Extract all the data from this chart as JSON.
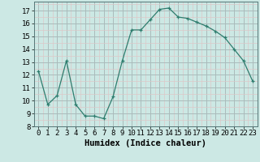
{
  "x": [
    0,
    1,
    2,
    3,
    4,
    5,
    6,
    7,
    8,
    9,
    10,
    11,
    12,
    13,
    14,
    15,
    16,
    17,
    18,
    19,
    20,
    21,
    22,
    23
  ],
  "y": [
    12.3,
    9.7,
    10.4,
    13.1,
    9.7,
    8.8,
    8.8,
    8.6,
    10.3,
    13.1,
    15.5,
    15.5,
    16.3,
    17.1,
    17.2,
    16.5,
    16.4,
    16.1,
    15.8,
    15.4,
    14.9,
    14.0,
    13.1,
    11.5
  ],
  "line_color": "#2e7d6e",
  "marker": "+",
  "bg_color": "#cce8e4",
  "major_grid_color": "#aabbbb",
  "minor_grid_color": "#ddc8c8",
  "xlabel": "Humidex (Indice chaleur)",
  "xlim": [
    -0.5,
    23.5
  ],
  "ylim": [
    8,
    17.7
  ],
  "yticks": [
    8,
    9,
    10,
    11,
    12,
    13,
    14,
    15,
    16,
    17
  ],
  "xticks": [
    0,
    1,
    2,
    3,
    4,
    5,
    6,
    7,
    8,
    9,
    10,
    11,
    12,
    13,
    14,
    15,
    16,
    17,
    18,
    19,
    20,
    21,
    22,
    23
  ],
  "xlabel_fontsize": 7.5,
  "tick_fontsize": 6.5
}
